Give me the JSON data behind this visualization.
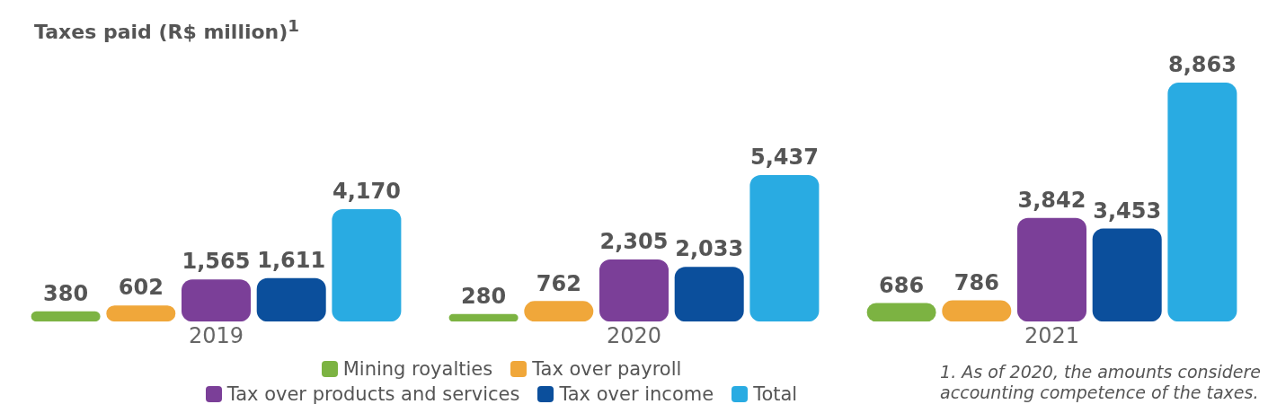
{
  "chart_data": {
    "type": "bar",
    "title": "Taxes paid (R$ million)$^{1}$",
    "categories": [
      "2019",
      "2020",
      "2021"
    ],
    "series": [
      {
        "name": "Mining royalties",
        "color": "#7cb342",
        "values": [
          380,
          280,
          686
        ],
        "value_labels": [
          "380",
          "280",
          "686"
        ]
      },
      {
        "name": "Tax over payroll",
        "color": "#f0a73a",
        "values": [
          602,
          762,
          786
        ],
        "value_labels": [
          "602",
          "762",
          "786"
        ]
      },
      {
        "name": "Tax over products and services",
        "color": "#7b3f98",
        "values": [
          1565,
          2305,
          3842
        ],
        "value_labels": [
          "1,565",
          "2,305",
          "3,842"
        ]
      },
      {
        "name": "Tax over income",
        "color": "#0b4f9c",
        "values": [
          1611,
          2033,
          3453
        ],
        "value_labels": [
          "1,611",
          "2,033",
          "3,453"
        ]
      },
      {
        "name": "Total",
        "color": "#29abe2",
        "values": [
          4170,
          5437,
          8863
        ],
        "value_labels": [
          "4,170",
          "5,437",
          "8,863"
        ]
      }
    ],
    "legend": "bottom",
    "grid": false,
    "annotations": [
      "1. As of 2020, the amounts considere",
      "accounting competence of the taxes."
    ]
  }
}
